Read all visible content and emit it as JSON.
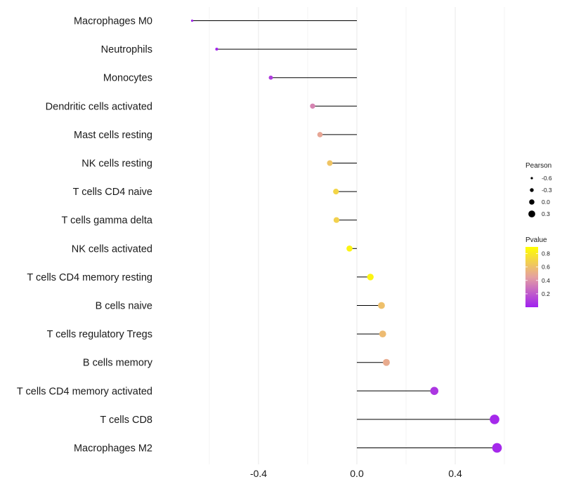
{
  "chart_data": {
    "type": "lollipop",
    "categories": [
      "Macrophages M0",
      "Neutrophils",
      "Monocytes",
      "Dendritic cells activated",
      "Mast cells resting",
      "NK cells resting",
      "T cells CD4 naive",
      "T cells gamma delta",
      "NK cells activated",
      "T cells CD4 memory resting",
      "B cells naive",
      "T cells regulatory  Tregs",
      "B cells memory",
      "T cells CD4 memory activated",
      "T cells CD8",
      "Macrophages M2"
    ],
    "pearson": [
      -0.67,
      -0.57,
      -0.35,
      -0.18,
      -0.15,
      -0.11,
      -0.085,
      -0.083,
      -0.03,
      0.055,
      0.1,
      0.105,
      0.12,
      0.315,
      0.56,
      0.57
    ],
    "pvalue": [
      0.02,
      0.02,
      0.1,
      0.35,
      0.48,
      0.62,
      0.7,
      0.68,
      0.85,
      0.85,
      0.6,
      0.58,
      0.5,
      0.08,
      0.03,
      0.03
    ],
    "xlim": [
      -0.8,
      0.6
    ],
    "x_ticks": [
      -0.4,
      0.0,
      0.4
    ],
    "x_tick_labels": [
      "-0.4",
      "0.0",
      "0.4"
    ],
    "xlabel": "",
    "ylabel": "",
    "grid": true,
    "legend_size": {
      "title": "Pearson",
      "labels": [
        "-0.6",
        "-0.3",
        "0.0",
        "0.3"
      ],
      "values": [
        -0.6,
        -0.3,
        0.0,
        0.3
      ]
    },
    "legend_color": {
      "title": "Pvalue",
      "labels": [
        "0.8",
        "0.6",
        "0.4",
        "0.2"
      ],
      "values": [
        0.8,
        0.6,
        0.4,
        0.2
      ],
      "range": [
        0.0,
        0.9
      ],
      "low_color": "#a020f0",
      "mid_color": "#e5a0a0",
      "high_color": "#ffff00"
    },
    "stem_color": "#000000",
    "grid_color": "#ebebeb"
  }
}
